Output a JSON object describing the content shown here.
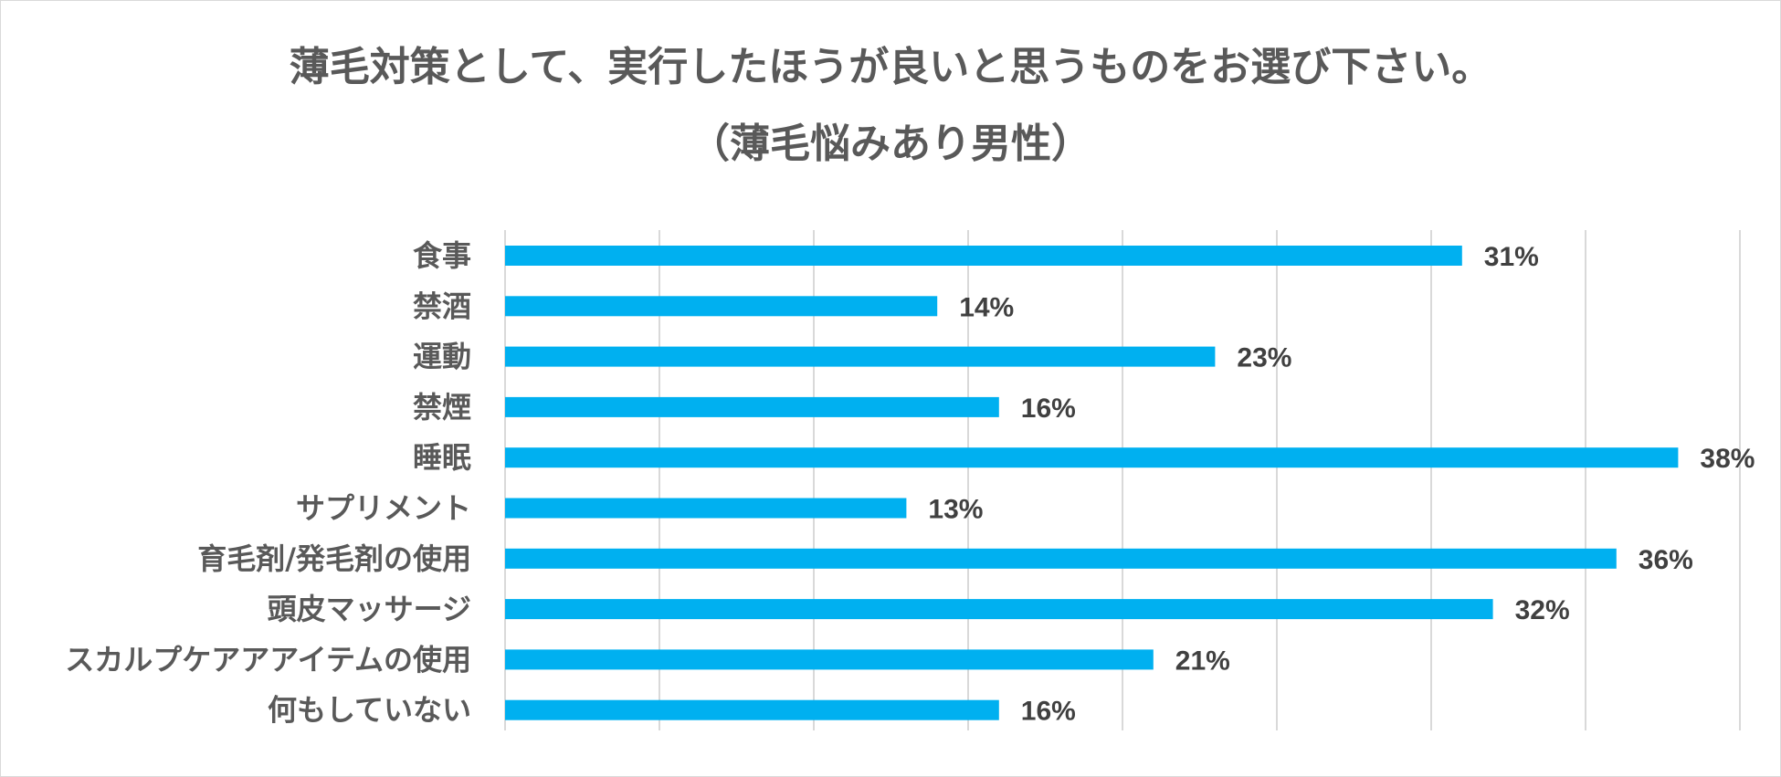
{
  "chart_data": {
    "type": "bar",
    "orientation": "horizontal",
    "title": "薄毛対策として、実行したほうが良いと思うものをお選び下さい。",
    "subtitle": "（薄毛悩みあり男性）",
    "categories": [
      "食事",
      "禁酒",
      "運動",
      "禁煙",
      "睡眠",
      "サプリメント",
      "育毛剤/発毛剤の使用",
      "頭皮マッサージ",
      "スカルプケアアアイテムの使用",
      "何もしていない"
    ],
    "values": [
      31,
      14,
      23,
      16,
      38,
      13,
      36,
      32,
      21,
      16
    ],
    "value_labels": [
      "31%",
      "14%",
      "23%",
      "16%",
      "38%",
      "13%",
      "36%",
      "32%",
      "21%",
      "16%"
    ],
    "xlim": [
      0,
      40
    ],
    "grid": true,
    "legend": "none",
    "bar_color": "#00b0f0",
    "grid_color": "#d9d9d9"
  }
}
